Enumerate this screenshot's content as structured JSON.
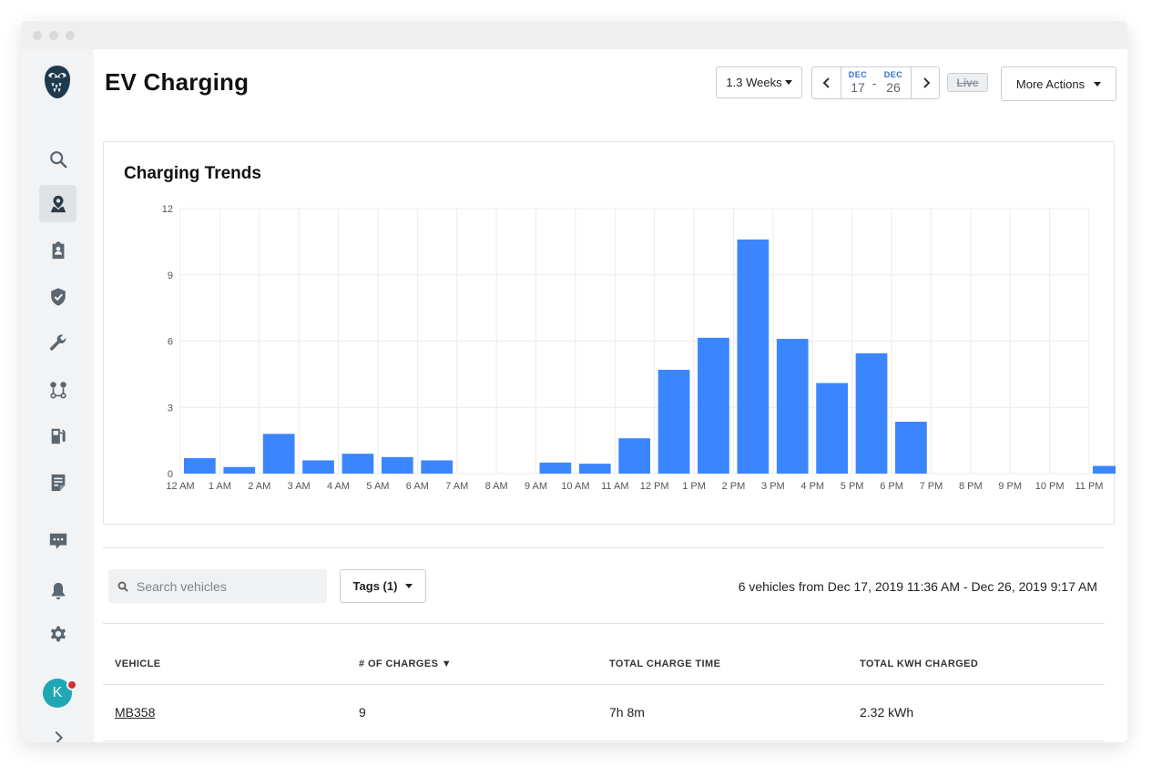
{
  "page": {
    "title": "EV Charging"
  },
  "toolbar": {
    "duration_label": "1.3 Weeks",
    "start_month": "DEC",
    "start_day": "17",
    "end_month": "DEC",
    "end_day": "26",
    "range_dash": "-",
    "live_label": "Live",
    "more_actions_label": "More Actions"
  },
  "sidebar": {
    "items": [
      "owl-logo-icon",
      "search-icon",
      "map-pin-icon",
      "clipboard-icon",
      "shield-check-icon",
      "wrench-icon",
      "route-icon",
      "fuel-pump-icon",
      "document-icon",
      "chat-icon",
      "bell-icon",
      "gear-icon",
      "chevron-right-icon"
    ],
    "avatar_initial": "K"
  },
  "card": {
    "title": "Charging Trends"
  },
  "chart_data": {
    "type": "bar",
    "title": "Charging Trends",
    "xlabel": "",
    "ylabel": "",
    "ylim": [
      0,
      12
    ],
    "yticks": [
      "0",
      "3",
      "6",
      "9",
      "12"
    ],
    "categories": [
      "12 AM",
      "1 AM",
      "2 AM",
      "3 AM",
      "4 AM",
      "5 AM",
      "6 AM",
      "7 AM",
      "8 AM",
      "9 AM",
      "10 AM",
      "11 AM",
      "12 PM",
      "1 PM",
      "2 PM",
      "3 PM",
      "4 PM",
      "5 PM",
      "6 PM",
      "7 PM",
      "8 PM",
      "9 PM",
      "10 PM",
      "11 PM"
    ],
    "values": [
      0.7,
      0.3,
      1.8,
      0.6,
      0.9,
      0.75,
      0.6,
      0,
      0,
      0.5,
      0.45,
      1.6,
      4.7,
      6.15,
      10.6,
      6.1,
      4.1,
      5.45,
      2.35,
      0,
      0,
      0,
      0,
      0.35
    ],
    "grid": true,
    "color": "#3b86ff"
  },
  "filters": {
    "search_placeholder": "Search vehicles",
    "tags_label": "Tags (1)",
    "summary": "6 vehicles from Dec 17, 2019 11:36 AM - Dec 26, 2019 9:17 AM"
  },
  "table": {
    "headers": [
      "VEHICLE",
      "# OF CHARGES ▼",
      "TOTAL CHARGE TIME",
      "TOTAL KWH CHARGED"
    ],
    "rows": [
      {
        "vehicle": "MB358",
        "charges": "9",
        "time": "7h 8m",
        "kwh": "2.32 kWh"
      }
    ]
  }
}
